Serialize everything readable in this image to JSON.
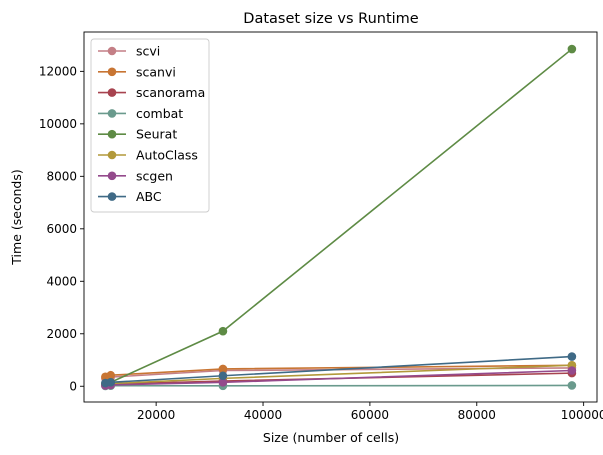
{
  "chart_data": {
    "type": "line",
    "title": "Dataset size vs Runtime",
    "xlabel": "Size (number of cells)",
    "ylabel": "Time (seconds)",
    "xlim": [
      6500,
      102500
    ],
    "ylim": [
      -600,
      13500
    ],
    "x_ticks": [
      20000,
      40000,
      60000,
      80000,
      100000
    ],
    "y_ticks": [
      0,
      2000,
      4000,
      6000,
      8000,
      10000,
      12000
    ],
    "grid": false,
    "legend_position": "top-left",
    "x": [
      10500,
      11500,
      32500,
      97800
    ],
    "series": [
      {
        "name": "scvi",
        "color": "#c47f86",
        "values": [
          300,
          350,
          600,
          700
        ]
      },
      {
        "name": "scanvi",
        "color": "#c87533",
        "values": [
          360,
          420,
          660,
          800
        ]
      },
      {
        "name": "scanorama",
        "color": "#a7434f",
        "values": [
          50,
          80,
          200,
          500
        ]
      },
      {
        "name": "combat",
        "color": "#6a9a8d",
        "values": [
          10,
          20,
          15,
          30
        ]
      },
      {
        "name": "Seurat",
        "color": "#5e8b45",
        "values": [
          100,
          150,
          2100,
          12850
        ]
      },
      {
        "name": "AutoClass",
        "color": "#b2993a",
        "values": [
          80,
          100,
          300,
          800
        ]
      },
      {
        "name": "scgen",
        "color": "#944a8c",
        "values": [
          30,
          50,
          150,
          600
        ]
      },
      {
        "name": "ABC",
        "color": "#3f6a86",
        "values": [
          120,
          150,
          400,
          1130
        ]
      }
    ]
  }
}
